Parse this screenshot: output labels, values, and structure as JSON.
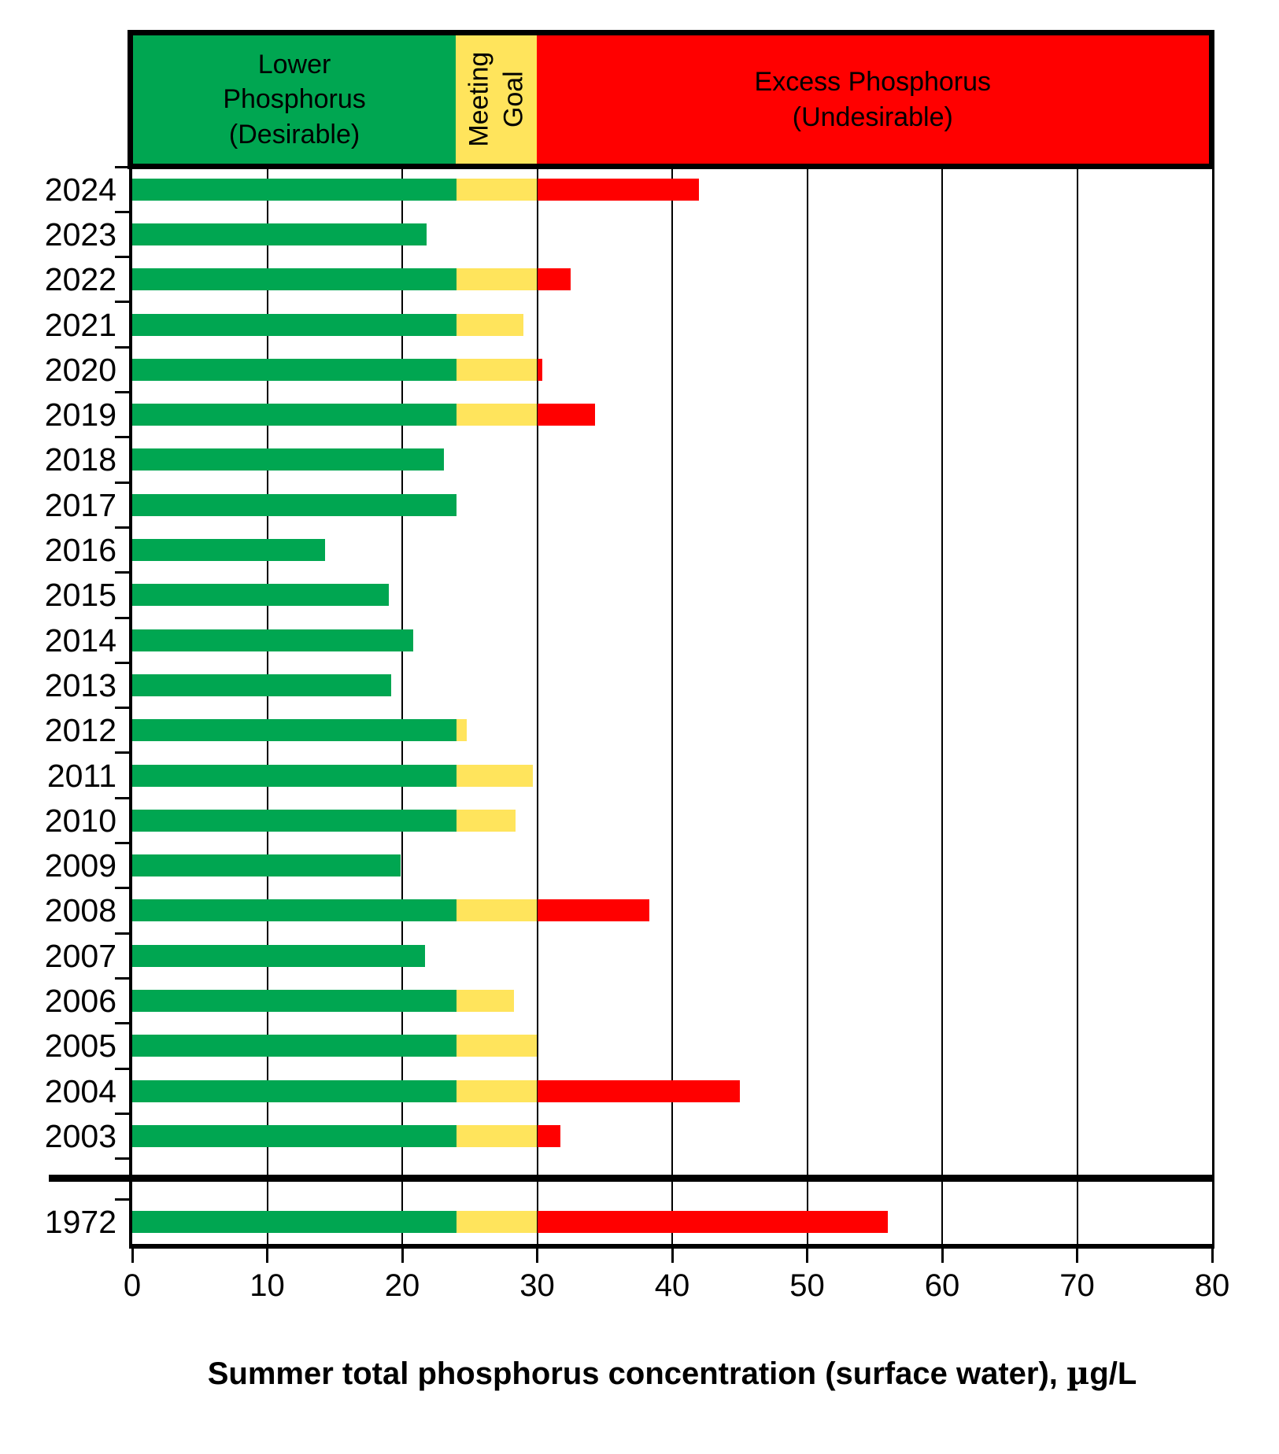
{
  "chart_data": {
    "type": "bar",
    "orientation": "horizontal",
    "title": "",
    "xlabel_parts": [
      "Summer total phosphorus concentration (surface water), ",
      "µ",
      "g/L"
    ],
    "xlim": [
      0,
      80
    ],
    "xticks": [
      0,
      10,
      20,
      30,
      40,
      50,
      60,
      70,
      80
    ],
    "grid": "vertical gridlines every 10 units",
    "legend_position": "none",
    "zones": [
      {
        "id": "lower",
        "label": "Lower\nPhosphorus\n(Desirable)",
        "range": [
          0,
          24
        ],
        "color": "#00A651"
      },
      {
        "id": "goal",
        "label": "Meeting\nGoal",
        "range": [
          24,
          30
        ],
        "color": "#FFE45C"
      },
      {
        "id": "excess",
        "label": "Excess Phosphorus\n(Undesirable)",
        "range": [
          30,
          80
        ],
        "color": "#FF0000"
      }
    ],
    "axis_break_between": [
      "2003",
      "1972"
    ],
    "categories": [
      "2024",
      "2023",
      "2022",
      "2021",
      "2020",
      "2019",
      "2018",
      "2017",
      "2016",
      "2015",
      "2014",
      "2013",
      "2012",
      "2011",
      "2010",
      "2009",
      "2008",
      "2007",
      "2006",
      "2005",
      "2004",
      "2003",
      "1972"
    ],
    "values": [
      42,
      21.8,
      32.5,
      29,
      30.4,
      34.3,
      23.1,
      24,
      14.3,
      19,
      20.8,
      19.2,
      24.8,
      29.7,
      28.4,
      19.9,
      38.3,
      21.7,
      28.3,
      30,
      45,
      31.7,
      56
    ]
  },
  "colors": {
    "bar_green": "#00A651",
    "bar_yellow": "#FFE45C",
    "bar_red": "#FF0000",
    "axis": "#000000",
    "background": "#FFFFFF"
  }
}
